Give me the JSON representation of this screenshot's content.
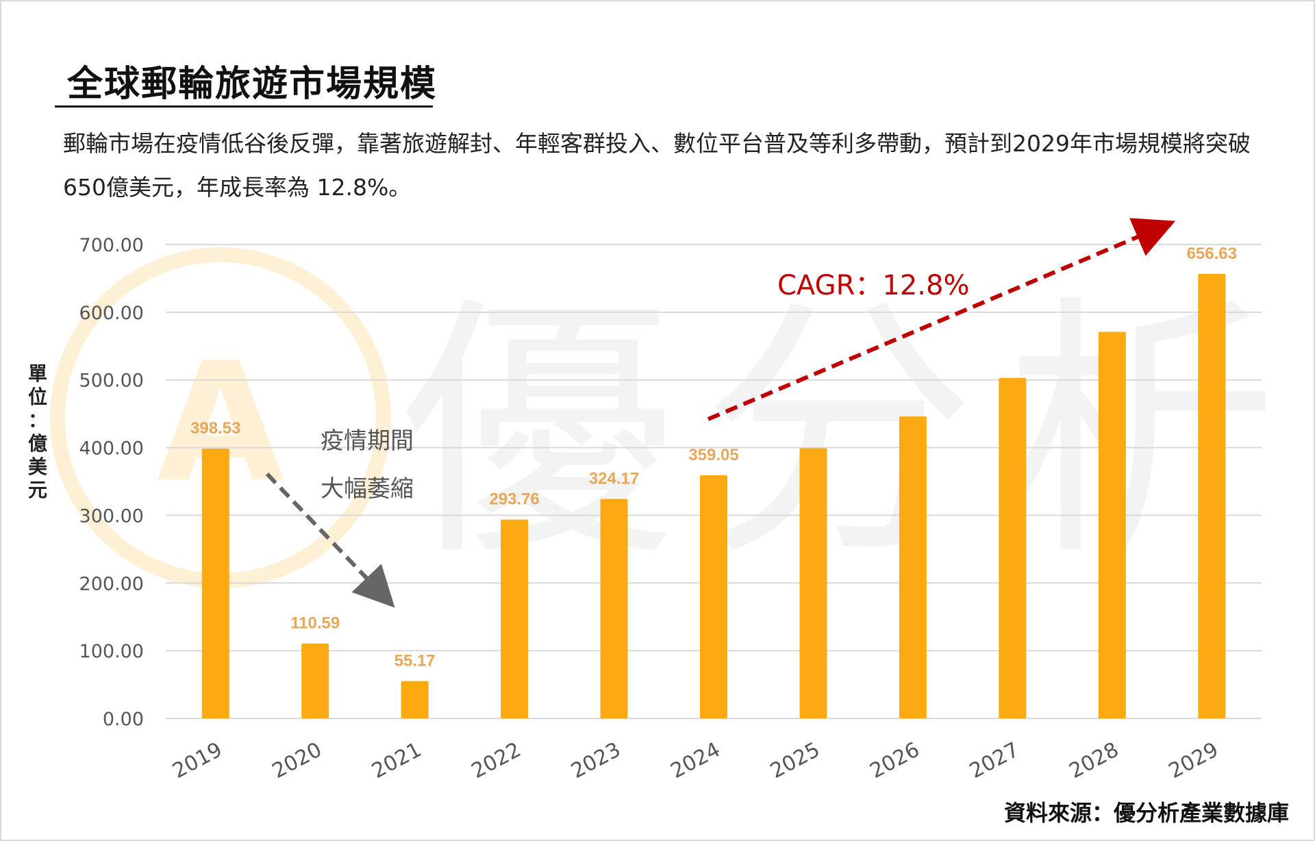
{
  "title": "全球郵輪旅遊市場規模",
  "description": "郵輪市場在疫情低谷後反彈，靠著旅遊解封、年輕客群投入、數位平台普及等利多帶動，預計到2029年市場規模將突破650億美元，年成長率為 12.8%。",
  "source": "資料來源：優分析產業數據庫",
  "watermark_text": "優分析",
  "colors": {
    "bar": "#FBAA11",
    "data_label": "#E8A658",
    "grid": "#d9d9d9",
    "axis_text": "#555555",
    "cagr": "#C00000",
    "pandemic_arrow": "#666666",
    "watermark": "#f3f3f3",
    "watermark_logo": "#fdf0d5"
  },
  "chart_data": {
    "type": "bar",
    "categories": [
      "2019",
      "2020",
      "2021",
      "2022",
      "2023",
      "2024",
      "2025",
      "2026",
      "2027",
      "2028",
      "2029"
    ],
    "values": [
      398.53,
      110.59,
      55.17,
      293.76,
      324.17,
      359.05,
      399,
      446,
      503,
      571,
      656.63
    ],
    "data_labels": [
      "398.53",
      "110.59",
      "55.17",
      "293.76",
      "324.17",
      "359.05",
      "",
      "",
      "",
      "",
      "656.63"
    ],
    "ylim": [
      0,
      700
    ],
    "yticks": [
      "0.00",
      "100.00",
      "200.00",
      "300.00",
      "400.00",
      "500.00",
      "600.00",
      "700.00"
    ],
    "ylabel": "單位：億美元",
    "xlabel": "",
    "grid": true,
    "annotations": {
      "cagr": "CAGR：12.8%",
      "pandemic_line1": "疫情期間",
      "pandemic_line2": "大幅萎縮"
    }
  }
}
